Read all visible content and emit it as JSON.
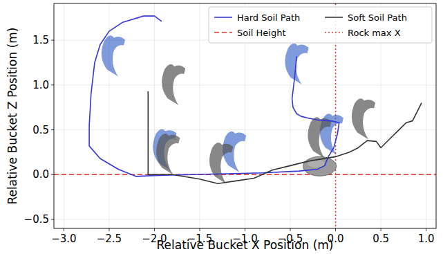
{
  "chart_data": {
    "type": "line",
    "x_label": "Relative Bucket X Position (m)",
    "y_label": "Relative Bucket Z Position (m)",
    "xlim": [
      -3.11,
      1.11
    ],
    "ylim": [
      -0.6,
      1.91
    ],
    "xticks": [
      {
        "value": -3.0,
        "label": "−3.0"
      },
      {
        "value": -2.5,
        "label": "−2.5"
      },
      {
        "value": -2.0,
        "label": "−2.0"
      },
      {
        "value": -1.5,
        "label": "−1.5"
      },
      {
        "value": -1.0,
        "label": "−1.0"
      },
      {
        "value": -0.5,
        "label": "−0.5"
      },
      {
        "value": 0.0,
        "label": "0.0"
      },
      {
        "value": 0.5,
        "label": "0.5"
      },
      {
        "value": 1.0,
        "label": "1.0"
      }
    ],
    "yticks": [
      {
        "value": -0.5,
        "label": "−0.5"
      },
      {
        "value": 0.0,
        "label": "0.0"
      },
      {
        "value": 0.5,
        "label": "0.5"
      },
      {
        "value": 1.0,
        "label": "1.0"
      },
      {
        "value": 1.5,
        "label": "1.5"
      }
    ],
    "grid": true,
    "legend": "upper right",
    "series": [
      {
        "name": "Hard Soil Path",
        "color": "#3535d8",
        "x": [
          -0.43,
          -0.45,
          -0.48,
          -0.47,
          -0.43,
          -0.38,
          -0.3,
          -0.2,
          -0.05,
          0.04,
          0.02,
          -0.02,
          -0.08,
          -0.12,
          -0.2,
          -0.4,
          -0.8,
          -1.2,
          -1.6,
          -2.0,
          -2.2,
          -2.4,
          -2.6,
          -2.72,
          -2.72,
          -2.7,
          -2.66,
          -2.6,
          -2.5,
          -2.35,
          -2.12,
          -2.0,
          -1.92
        ],
        "values": [
          1.32,
          1.1,
          0.85,
          0.75,
          0.68,
          0.65,
          0.63,
          0.61,
          0.6,
          0.58,
          0.45,
          0.3,
          0.2,
          0.1,
          0.06,
          0.04,
          0.02,
          0.01,
          0.0,
          -0.01,
          -0.02,
          0.06,
          0.18,
          0.32,
          0.55,
          0.9,
          1.25,
          1.45,
          1.6,
          1.7,
          1.77,
          1.77,
          1.71
        ]
      },
      {
        "name": "Soft Soil Path",
        "color": "#333333",
        "x": [
          -2.07,
          -2.07,
          -1.8,
          -1.5,
          -1.3,
          -1.1,
          -0.9,
          -0.7,
          -0.5,
          -0.3,
          0.0,
          0.15,
          0.25,
          0.35,
          0.45,
          0.5,
          0.6,
          0.7,
          0.78,
          0.85,
          0.95
        ],
        "values": [
          0.93,
          0.0,
          0.0,
          -0.05,
          -0.1,
          -0.07,
          -0.04,
          0.05,
          0.1,
          0.15,
          0.2,
          0.25,
          0.3,
          0.38,
          0.37,
          0.3,
          0.4,
          0.5,
          0.58,
          0.6,
          0.8
        ]
      }
    ],
    "hlines": [
      {
        "name": "Soil Height",
        "value": 0.0,
        "color": "#e8332e",
        "line_style": "dashed"
      }
    ],
    "vlines": [
      {
        "name": "Rock max X",
        "value": 0.0,
        "color": "#e8332e",
        "line_style": "dotted"
      }
    ]
  }
}
